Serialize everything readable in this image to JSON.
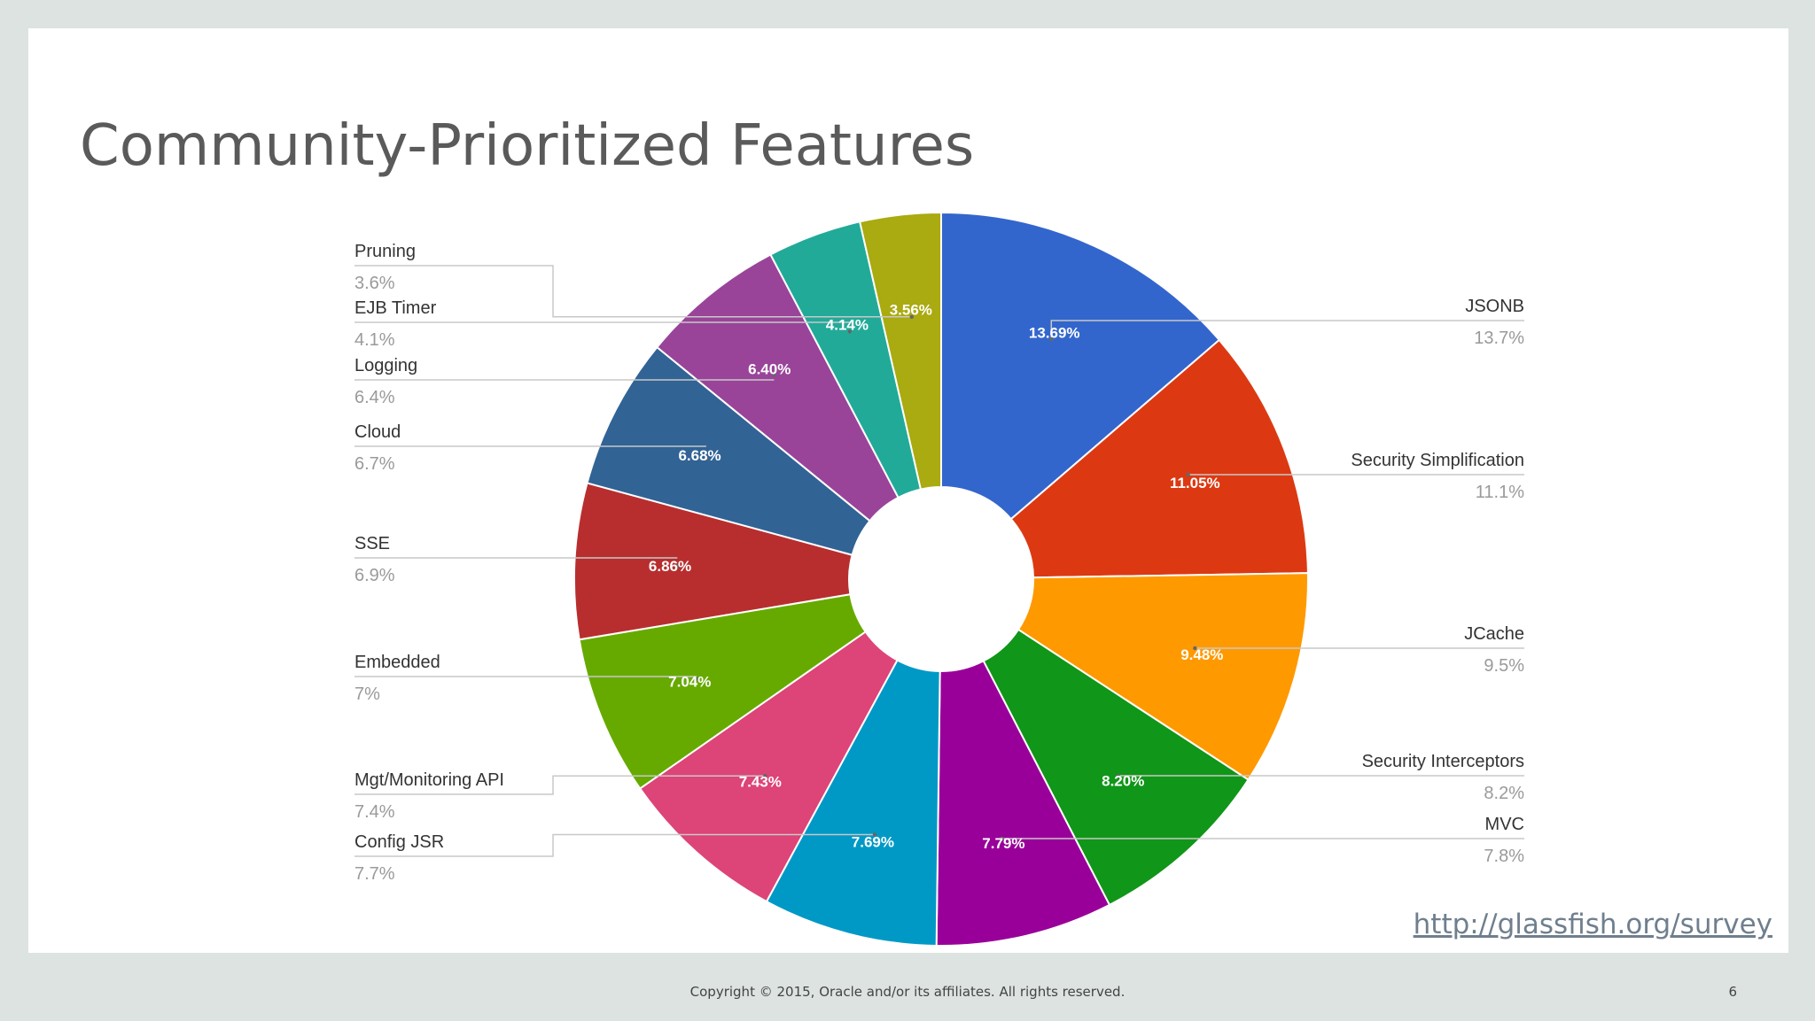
{
  "slide": {
    "title": "Community-Prioritized Features",
    "link_text": "http://glassfish.org/survey",
    "copyright": "Copyright © 2015, Oracle and/or its affiliates. All rights reserved.",
    "page_number": "6"
  },
  "chart_data": {
    "type": "pie",
    "title": "",
    "slices": [
      {
        "name": "JSONB",
        "value": 13.69,
        "inner_label": "13.69%",
        "legend_value": "13.7%",
        "color": "#3366cc"
      },
      {
        "name": "Security Simplification",
        "value": 11.05,
        "inner_label": "11.05%",
        "legend_value": "11.1%",
        "color": "#dc3912"
      },
      {
        "name": "JCache",
        "value": 9.48,
        "inner_label": "9.48%",
        "legend_value": "9.5%",
        "color": "#ff9900"
      },
      {
        "name": "Security Interceptors",
        "value": 8.2,
        "inner_label": "8.20%",
        "legend_value": "8.2%",
        "color": "#109618"
      },
      {
        "name": "MVC",
        "value": 7.79,
        "inner_label": "7.79%",
        "legend_value": "7.8%",
        "color": "#990099"
      },
      {
        "name": "Config JSR",
        "value": 7.69,
        "inner_label": "7.69%",
        "legend_value": "7.7%",
        "color": "#0099c6"
      },
      {
        "name": "Mgt/Monitoring API",
        "value": 7.43,
        "inner_label": "7.43%",
        "legend_value": "7.4%",
        "color": "#dd4477"
      },
      {
        "name": "Embedded",
        "value": 7.04,
        "inner_label": "7.04%",
        "legend_value": "7%",
        "color": "#66aa00"
      },
      {
        "name": "SSE",
        "value": 6.86,
        "inner_label": "6.86%",
        "legend_value": "6.9%",
        "color": "#b82e2e"
      },
      {
        "name": "Cloud",
        "value": 6.68,
        "inner_label": "6.68%",
        "legend_value": "6.7%",
        "color": "#316395"
      },
      {
        "name": "Logging",
        "value": 6.4,
        "inner_label": "6.40%",
        "legend_value": "6.4%",
        "color": "#994499"
      },
      {
        "name": "EJB Timer",
        "value": 4.14,
        "inner_label": "4.14%",
        "legend_value": "4.1%",
        "color": "#22aa99"
      },
      {
        "name": "Pruning",
        "value": 3.56,
        "inner_label": "3.56%",
        "legend_value": "3.6%",
        "color": "#aaaa11"
      }
    ],
    "legend": "sides"
  }
}
